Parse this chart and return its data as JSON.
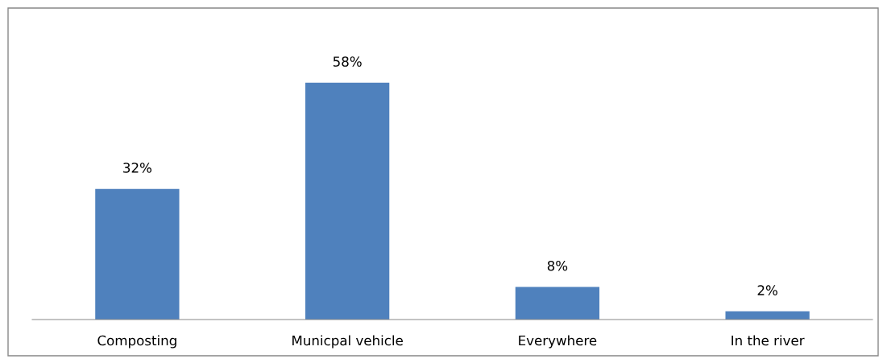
{
  "chart_data": {
    "type": "bar",
    "categories": [
      "Composting",
      "Municpal vehicle",
      "Everywhere",
      "In the river"
    ],
    "values": [
      32,
      58,
      8,
      2
    ],
    "value_labels": [
      "32%",
      "58%",
      "8%",
      "2%"
    ],
    "color": "#4f81bd",
    "grid": false,
    "legend": false
  }
}
